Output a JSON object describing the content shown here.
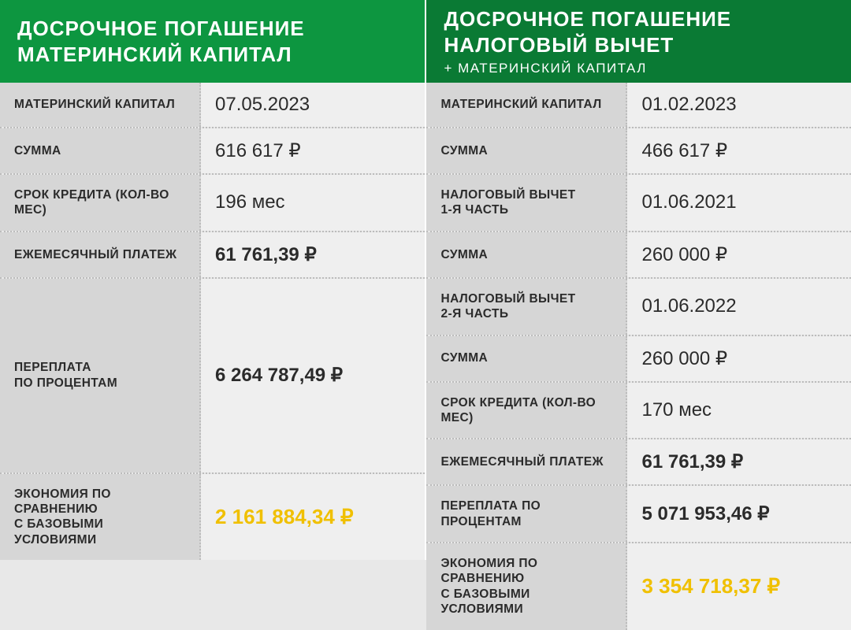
{
  "colors": {
    "header_left": "#0d9640",
    "header_right": "#0a7a34",
    "highlight": "#f0c000",
    "label_bg": "#d6d6d6",
    "value_bg": "#efefef",
    "text": "#2b2b2b",
    "divider": "#ffffff"
  },
  "left": {
    "title_line1": "ДОСРОЧНОЕ ПОГАШЕНИЕ",
    "title_line2": "МАТЕРИНСКИЙ КАПИТАЛ",
    "rows": [
      {
        "label": "МАТЕРИНСКИЙ КАПИТАЛ",
        "value": "07.05.2023",
        "bold": false
      },
      {
        "label": "СУММА",
        "value": "616 617 ₽",
        "bold": false
      },
      {
        "label": "СРОК КРЕДИТА (КОЛ-ВО МЕС)",
        "value": "196 мес",
        "bold": false
      },
      {
        "label": "ЕЖЕМЕСЯЧНЫЙ ПЛАТЕЖ",
        "value": "61 761,39 ₽",
        "bold": true
      },
      {
        "label": "ПЕРЕПЛАТА\nПО ПРОЦЕНТАМ",
        "value": "6 264 787,49 ₽",
        "bold": true,
        "grow": true
      }
    ],
    "highlight": {
      "label": "ЭКОНОМИЯ ПО СРАВНЕНИЮ\nС БАЗОВЫМИ УСЛОВИЯМИ",
      "value": "2 161 884,34 ₽"
    }
  },
  "right": {
    "title_line1": "ДОСРОЧНОЕ ПОГАШЕНИЕ",
    "title_line2": "НАЛОГОВЫЙ ВЫЧЕТ",
    "subtitle": "+ МАТЕРИНСКИЙ КАПИТАЛ",
    "rows": [
      {
        "label": "МАТЕРИНСКИЙ КАПИТАЛ",
        "value": "01.02.2023",
        "bold": false
      },
      {
        "label": "СУММА",
        "value": "466 617 ₽",
        "bold": false
      },
      {
        "label": "НАЛОГОВЫЙ ВЫЧЕТ\n1-Я ЧАСТЬ",
        "value": "01.06.2021",
        "bold": false
      },
      {
        "label": "СУММА",
        "value": "260 000 ₽",
        "bold": false
      },
      {
        "label": "НАЛОГОВЫЙ ВЫЧЕТ\n2-Я ЧАСТЬ",
        "value": "01.06.2022",
        "bold": false
      },
      {
        "label": "СУММА",
        "value": "260 000 ₽",
        "bold": false
      },
      {
        "label": "СРОК КРЕДИТА (КОЛ-ВО МЕС)",
        "value": "170 мес",
        "bold": false
      },
      {
        "label": "ЕЖЕМЕСЯЧНЫЙ ПЛАТЕЖ",
        "value": "61 761,39 ₽",
        "bold": true
      },
      {
        "label": "ПЕРЕПЛАТА ПО ПРОЦЕНТАМ",
        "value": "5 071 953,46 ₽",
        "bold": true
      }
    ],
    "highlight": {
      "label": "ЭКОНОМИЯ ПО СРАВНЕНИЮ\nС БАЗОВЫМИ УСЛОВИЯМИ",
      "value": "3 354 718,37 ₽"
    }
  }
}
